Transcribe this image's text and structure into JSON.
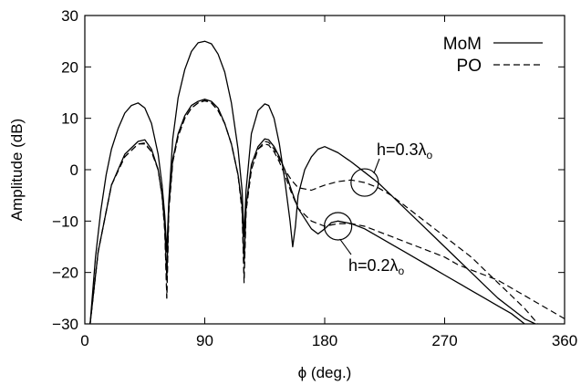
{
  "chart_data": {
    "type": "line",
    "xlabel": "ϕ (deg.)",
    "ylabel": "Amplitude (dB)",
    "xlim": [
      0,
      360
    ],
    "ylim": [
      -30,
      30
    ],
    "x_ticks": [
      "0",
      "90",
      "180",
      "270",
      "360"
    ],
    "y_ticks": [
      "30",
      "20",
      "10",
      "0",
      "−10",
      "−20",
      "−30"
    ],
    "grid": false,
    "legend_position": "top-right",
    "legend": [
      {
        "label": "MoM",
        "style": "solid"
      },
      {
        "label": "PO",
        "style": "dashed"
      }
    ],
    "annotations": [
      {
        "base": "h=0.3λ",
        "sub": "o",
        "points_to": [
          210,
          -2.5
        ]
      },
      {
        "base": "h=0.2λ",
        "sub": "o",
        "points_to": [
          190,
          -11
        ]
      }
    ],
    "series": [
      {
        "name": "MoM",
        "style": "solid",
        "group": "h=0.3λo",
        "x": [
          4,
          8,
          12,
          16,
          20,
          25,
          30,
          35,
          40,
          45,
          50,
          55,
          58,
          60,
          61.5,
          63,
          66,
          70,
          75,
          80,
          85,
          90,
          95,
          100,
          105,
          110,
          115,
          118,
          119.5,
          121,
          125,
          130,
          135,
          138,
          142,
          146,
          150,
          154,
          156,
          158,
          160,
          165,
          170,
          175,
          180,
          190,
          200,
          210,
          220,
          230,
          240,
          250,
          260,
          270,
          280,
          290,
          300,
          310,
          320,
          330,
          338
        ],
        "y": [
          -30,
          -17,
          -8,
          -1,
          4,
          8,
          11,
          12.5,
          13,
          12,
          9,
          3,
          -3,
          -9,
          -16,
          -6,
          6,
          14,
          19.5,
          23,
          24.7,
          25,
          24.5,
          22.5,
          19,
          13,
          4,
          -4,
          -13,
          -4,
          7,
          11.5,
          12.8,
          12.5,
          10,
          5,
          -2,
          -10,
          -15,
          -11,
          -5,
          0,
          2.5,
          4,
          4.5,
          3.3,
          1.5,
          -0.5,
          -2.5,
          -5,
          -7.5,
          -10,
          -12.5,
          -15,
          -17.5,
          -20,
          -22.5,
          -25,
          -27,
          -29,
          -30
        ]
      },
      {
        "name": "PO",
        "style": "dashed",
        "group": "h=0.3λo",
        "x": [
          4,
          10,
          20,
          30,
          40,
          45,
          50,
          55,
          58,
          60,
          61.5,
          63,
          66,
          70,
          75,
          80,
          85,
          90,
          95,
          100,
          105,
          110,
          115,
          118,
          119.5,
          121,
          125,
          130,
          135,
          138,
          142,
          146,
          150,
          155,
          160,
          170,
          180,
          190,
          200,
          210,
          220,
          230,
          240,
          250,
          260,
          270,
          280,
          290,
          300,
          310,
          320,
          330,
          340
        ],
        "y": [
          -30,
          -16,
          -3,
          2.5,
          5,
          5,
          3.5,
          0,
          -5,
          -12,
          -25,
          -8,
          1.5,
          6.5,
          10,
          12,
          13,
          13.5,
          13,
          11.5,
          9,
          5,
          -1,
          -8,
          -21,
          -8,
          0,
          4,
          5.5,
          5.3,
          4,
          2,
          0,
          -2,
          -3.5,
          -4,
          -3,
          -2.3,
          -2,
          -2.5,
          -3.5,
          -5,
          -7,
          -9,
          -11,
          -13,
          -15,
          -17,
          -19.5,
          -22,
          -24.5,
          -27,
          -30
        ]
      },
      {
        "name": "MoM",
        "style": "solid",
        "group": "h=0.2λo",
        "x": [
          4,
          10,
          20,
          30,
          40,
          45,
          50,
          55,
          58,
          60,
          61.5,
          63,
          66,
          70,
          75,
          80,
          85,
          90,
          95,
          100,
          105,
          110,
          115,
          118,
          119.5,
          121,
          125,
          130,
          135,
          138,
          142,
          146,
          150,
          155,
          160,
          170,
          175,
          180,
          185,
          190,
          200,
          210,
          220,
          230,
          240,
          250,
          260,
          270,
          280,
          290,
          300,
          310,
          320,
          330
        ],
        "y": [
          -30,
          -16,
          -3,
          3,
          5.5,
          5.8,
          4,
          0,
          -5,
          -11,
          -21,
          -7,
          2,
          7,
          10.5,
          12.5,
          13.3,
          13.7,
          13.3,
          12,
          9,
          5,
          -1,
          -7,
          -18,
          -7,
          1,
          4.5,
          6,
          5.8,
          4.5,
          2.5,
          0,
          -4,
          -7.5,
          -11.5,
          -12.5,
          -11.5,
          -10.3,
          -10,
          -10.5,
          -11.5,
          -13,
          -14.5,
          -16,
          -17.5,
          -19,
          -20.5,
          -22,
          -23.5,
          -25,
          -26.5,
          -28,
          -30
        ]
      },
      {
        "name": "PO",
        "style": "dashed",
        "group": "h=0.2λo",
        "x": [
          4,
          10,
          20,
          30,
          40,
          45,
          50,
          55,
          58,
          60,
          61.5,
          63,
          66,
          70,
          75,
          80,
          85,
          90,
          95,
          100,
          105,
          110,
          115,
          118,
          119.5,
          121,
          125,
          130,
          135,
          138,
          142,
          146,
          150,
          155,
          160,
          170,
          180,
          190,
          200,
          210,
          220,
          230,
          240,
          250,
          260,
          270,
          280,
          290,
          300,
          310,
          320,
          330,
          340,
          350,
          360
        ],
        "y": [
          -30,
          -16,
          -3,
          2.5,
          5,
          5.2,
          3.5,
          0,
          -5,
          -12,
          -25,
          -8,
          1.5,
          6.5,
          10,
          12,
          13,
          13.4,
          13,
          11.5,
          9,
          5,
          -1,
          -8,
          -22,
          -8,
          0,
          4,
          5,
          4.8,
          3.5,
          1.5,
          -1,
          -4.5,
          -7.5,
          -10,
          -11,
          -10.5,
          -10.5,
          -11,
          -12,
          -13,
          -14,
          -15,
          -16,
          -17,
          -18.5,
          -19.5,
          -20.5,
          -21.5,
          -23,
          -24.5,
          -26,
          -27.5,
          -29
        ]
      }
    ]
  }
}
